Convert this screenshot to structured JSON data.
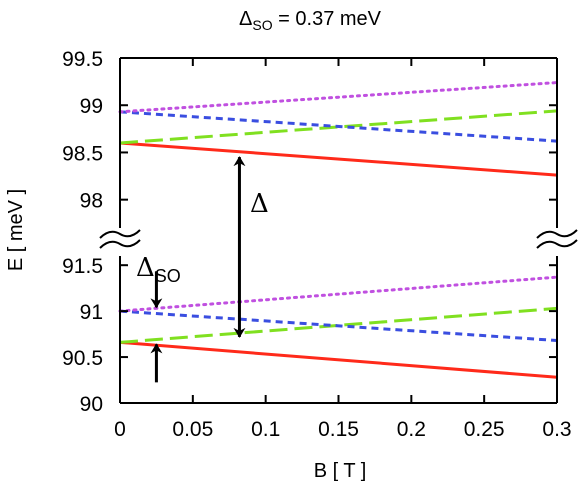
{
  "chart_data": {
    "type": "line",
    "title": {
      "symbol": "Δ",
      "subscript": "SO",
      "rest": " = 0.37 meV"
    },
    "xlabel": "B [ T ]",
    "ylabel": "E [ meV ]",
    "xlim": [
      0,
      0.3
    ],
    "ylim_upper": [
      97.7,
      99.5
    ],
    "ylim_lower": [
      90,
      91.6
    ],
    "broken_y_axis": true,
    "grid": false,
    "x_ticks": [
      {
        "value": 0,
        "label": "0"
      },
      {
        "value": 0.05,
        "label": "0.05"
      },
      {
        "value": 0.1,
        "label": "0.1"
      },
      {
        "value": 0.15,
        "label": "0.15"
      },
      {
        "value": 0.2,
        "label": "0.2"
      },
      {
        "value": 0.25,
        "label": "0.25"
      },
      {
        "value": 0.3,
        "label": "0.3"
      }
    ],
    "y_ticks_upper": [
      {
        "value": 99.5,
        "label": "99.5"
      },
      {
        "value": 99,
        "label": "99"
      },
      {
        "value": 98.5,
        "label": "98.5"
      },
      {
        "value": 98,
        "label": "98"
      }
    ],
    "y_ticks_lower": [
      {
        "value": 91.5,
        "label": "91.5"
      },
      {
        "value": 91,
        "label": "91"
      },
      {
        "value": 90.5,
        "label": "90.5"
      },
      {
        "value": 90,
        "label": "90"
      }
    ],
    "series": [
      {
        "panel": "upper",
        "style": "solid",
        "color": "#ff2a1a",
        "x": [
          0,
          0.3
        ],
        "y": [
          98.6,
          98.26
        ]
      },
      {
        "panel": "upper",
        "style": "long-dash",
        "color": "#80e020",
        "x": [
          0,
          0.3
        ],
        "y": [
          98.6,
          98.94
        ]
      },
      {
        "panel": "upper",
        "style": "short-dash",
        "color": "#3a4ee0",
        "x": [
          0,
          0.3
        ],
        "y": [
          98.93,
          98.62
        ]
      },
      {
        "panel": "upper",
        "style": "dotted",
        "color": "#c050e0",
        "x": [
          0,
          0.3
        ],
        "y": [
          98.93,
          99.24
        ]
      },
      {
        "panel": "lower",
        "style": "solid",
        "color": "#ff2a1a",
        "x": [
          0,
          0.3
        ],
        "y": [
          90.66,
          90.28
        ]
      },
      {
        "panel": "lower",
        "style": "long-dash",
        "color": "#80e020",
        "x": [
          0,
          0.3
        ],
        "y": [
          90.66,
          91.03
        ]
      },
      {
        "panel": "lower",
        "style": "short-dash",
        "color": "#3a4ee0",
        "x": [
          0,
          0.3
        ],
        "y": [
          91.0,
          90.68
        ]
      },
      {
        "panel": "lower",
        "style": "dotted",
        "color": "#c050e0",
        "x": [
          0,
          0.3
        ],
        "y": [
          91.0,
          91.37
        ]
      }
    ],
    "annotations": {
      "delta": {
        "label": "Δ",
        "x": 0.082,
        "from_panel": "upper",
        "from_y": 98.45,
        "to_panel": "lower",
        "to_y": 90.72
      },
      "delta_so": {
        "symbol": "Δ",
        "subscript": "SO",
        "x": 0.025,
        "top_arrow_tip": 91.02,
        "bottom_arrow_tip": 90.66
      }
    }
  }
}
